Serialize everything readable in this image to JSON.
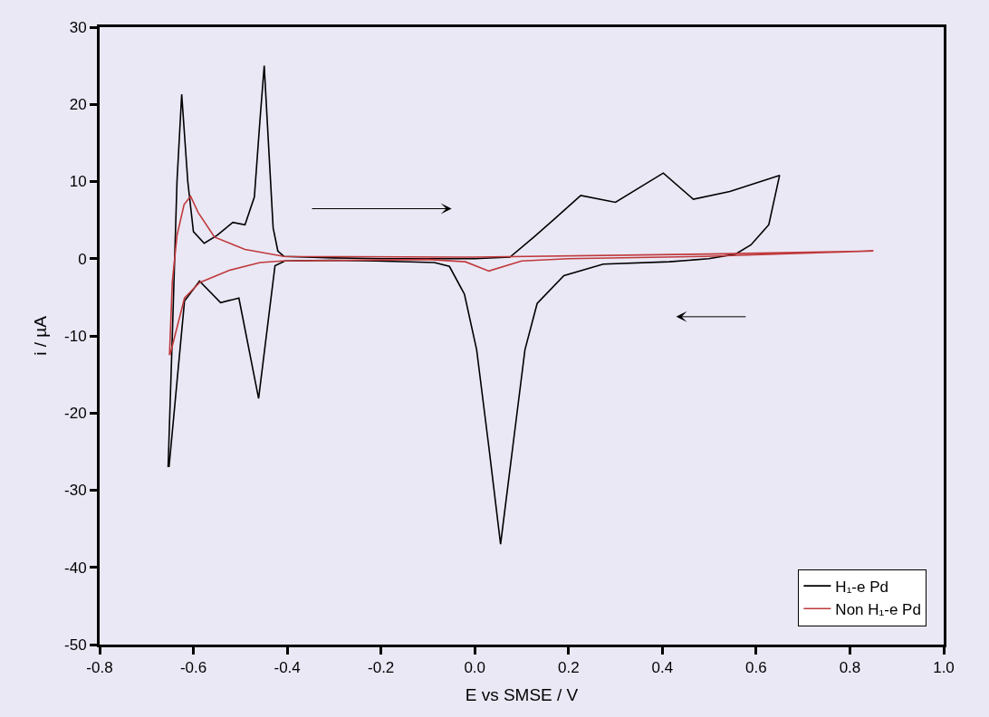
{
  "chart_data": {
    "type": "line",
    "xlabel": "E vs SMSE / V",
    "ylabel": "i / µA",
    "xlim": [
      -0.8,
      1.0
    ],
    "ylim": [
      -50,
      30
    ],
    "xticks": [
      -0.8,
      -0.6,
      -0.4,
      -0.2,
      {
        "value": 0,
        "label": "0.0"
      },
      0.2,
      0.4,
      0.6,
      0.8,
      {
        "value": 1,
        "label": "1.0"
      }
    ],
    "yticks": [
      -50,
      -40,
      -30,
      -20,
      -10,
      0,
      10,
      20,
      30
    ],
    "grid": false,
    "legend": "bottom right",
    "marker": "none",
    "line_style": "solid",
    "series": [
      {
        "name": "H₁-e Pd",
        "color": "#000000",
        "x": [
          -0.654,
          -0.645,
          -0.635,
          -0.625,
          -0.612,
          -0.6,
          -0.577,
          -0.55,
          -0.516,
          -0.49,
          -0.47,
          -0.458,
          -0.449,
          -0.44,
          -0.43,
          -0.42,
          -0.407,
          -0.3,
          -0.2,
          0.0,
          0.075,
          0.126,
          0.171,
          0.226,
          0.3,
          0.402,
          0.466,
          0.544,
          0.65,
          0.627,
          0.589,
          0.556,
          0.499,
          0.415,
          0.274,
          0.19,
          0.133,
          0.107,
          0.081,
          0.055,
          0.03,
          0.004,
          -0.022,
          -0.054,
          -0.086,
          -0.21,
          -0.31,
          -0.405,
          -0.426,
          -0.461,
          -0.503,
          -0.542,
          -0.587,
          -0.619,
          -0.652
        ],
        "values": [
          -27,
          -10,
          10,
          21.3,
          10,
          3.5,
          2.0,
          3.0,
          4.7,
          4.4,
          8,
          18,
          25,
          15,
          4,
          1,
          0.3,
          0.1,
          0,
          0,
          0.2,
          2.8,
          5.2,
          8.2,
          7.3,
          11.1,
          7.7,
          8.7,
          10.8,
          4.4,
          1.8,
          0.6,
          0,
          -0.4,
          -0.7,
          -2.2,
          -5.8,
          -11.8,
          -24.4,
          -37,
          -24.4,
          -11.8,
          -4.6,
          -1.0,
          -0.5,
          -0.3,
          -0.2,
          -0.3,
          -0.9,
          -18.1,
          -5.1,
          -5.7,
          -2.9,
          -5.5,
          -27
        ]
      },
      {
        "name": "Non H₁-e Pd",
        "color": "#c0393b",
        "x": [
          -0.651,
          -0.645,
          -0.635,
          -0.62,
          -0.606,
          -0.59,
          -0.555,
          -0.49,
          -0.407,
          0.0,
          0.5,
          0.85,
          0.49,
          0.2,
          0.1,
          0.03,
          -0.02,
          -0.1,
          -0.41,
          -0.458,
          -0.523,
          -0.587,
          -0.619,
          -0.65
        ],
        "values": [
          -12.5,
          -3,
          3,
          7,
          8.1,
          6,
          2.8,
          1.2,
          0.3,
          0.2,
          0.6,
          1.0,
          0.3,
          0,
          -0.3,
          -1.6,
          -0.4,
          -0.1,
          -0.3,
          -0.5,
          -1.5,
          -3.1,
          -5.1,
          -12.5
        ]
      }
    ]
  }
}
